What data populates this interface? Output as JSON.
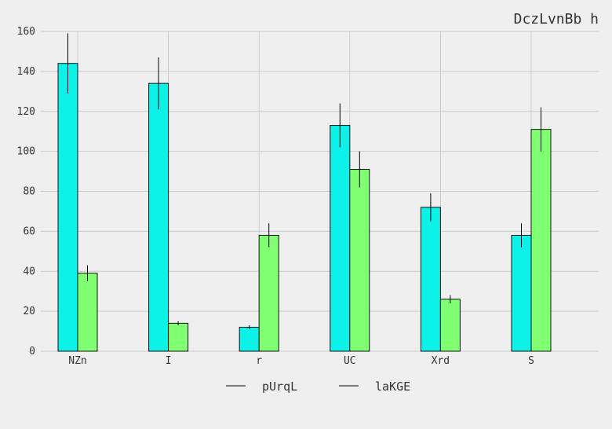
{
  "chart_data": {
    "type": "bar",
    "title": "DczLvnBb h",
    "xlabel": "",
    "ylabel": "",
    "categories": [
      "NZn",
      "I",
      "r",
      "UC",
      "Xrd",
      "S"
    ],
    "series": [
      {
        "name": "pUrqL",
        "color": "#0df2e8",
        "values": [
          144,
          134,
          12,
          113,
          72,
          58
        ],
        "errors": [
          15,
          13,
          1,
          11,
          7,
          6
        ]
      },
      {
        "name": "laKGE",
        "color": "#80ff73",
        "values": [
          39,
          14,
          58,
          91,
          26,
          111
        ],
        "errors": [
          4,
          1,
          6,
          9,
          2,
          11
        ]
      }
    ],
    "ylim": [
      0,
      160
    ],
    "yticks": [
      0,
      20,
      40,
      60,
      80,
      100,
      120,
      140,
      160
    ],
    "grid": true,
    "legend": "bottom-center",
    "background": "#efefef",
    "grid_color": "#cbcbcb"
  }
}
